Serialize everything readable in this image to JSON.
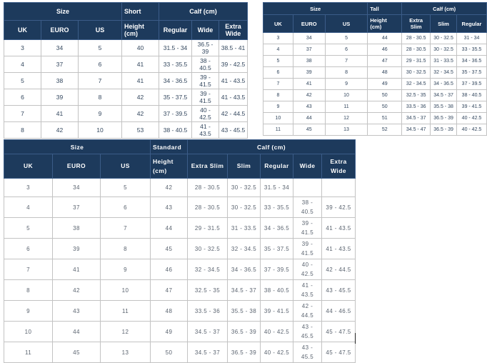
{
  "colors": {
    "header_background": "#1d3a5c",
    "header_divider": "#3b5c88",
    "header_text": "#ffffff",
    "body_border": "#c3c3c3",
    "body_text": "#33475e"
  },
  "tables": [
    {
      "id": "short",
      "size_label": "Size",
      "fit_label": "Short",
      "height_label": "Height (cm)",
      "calf_label": "Calf (cm)",
      "size_cols": [
        "UK",
        "EURO",
        "US"
      ],
      "calf_cols": [
        "Regular",
        "Wide",
        "Extra Wide"
      ],
      "rows": [
        [
          "3",
          "34",
          "5",
          "40",
          "31.5 - 34",
          "36.5 - 39",
          "38.5 - 41"
        ],
        [
          "4",
          "37",
          "6",
          "41",
          "33 - 35.5",
          "38 - 40.5",
          "39 - 42.5"
        ],
        [
          "5",
          "38",
          "7",
          "41",
          "34 - 36.5",
          "39 - 41.5",
          "41 - 43.5"
        ],
        [
          "6",
          "39",
          "8",
          "42",
          "35 - 37.5",
          "39 - 41.5",
          "41 - 43.5"
        ],
        [
          "7",
          "41",
          "9",
          "42",
          "37 - 39.5",
          "40 - 42.5",
          "42 - 44.5"
        ],
        [
          "8",
          "42",
          "10",
          "53",
          "38 - 40.5",
          "41 - 43.5",
          "43 - 45.5"
        ]
      ]
    },
    {
      "id": "tall",
      "size_label": "Size",
      "fit_label": "Tall",
      "height_label": "Height (cm)",
      "calf_label": "Calf (cm)",
      "size_cols": [
        "UK",
        "EURO",
        "US"
      ],
      "calf_cols": [
        "Extra Slim",
        "Slim",
        "Regular"
      ],
      "rows": [
        [
          "3",
          "34",
          "5",
          "44",
          "28 - 30.5",
          "30 - 32.5",
          "31 - 34"
        ],
        [
          "4",
          "37",
          "6",
          "46",
          "28 - 30.5",
          "30 - 32.5",
          "33 - 35.5"
        ],
        [
          "5",
          "38",
          "7",
          "47",
          "29 - 31.5",
          "31 - 33.5",
          "34 - 36.5"
        ],
        [
          "6",
          "39",
          "8",
          "48",
          "30 - 32.5",
          "32 - 34.5",
          "35 - 37.5"
        ],
        [
          "7",
          "41",
          "9",
          "49",
          "32 - 34.5",
          "34 - 36.5",
          "37 - 39.5"
        ],
        [
          "8",
          "42",
          "10",
          "50",
          "32.5 - 35",
          "34.5 - 37",
          "38 - 40.5"
        ],
        [
          "9",
          "43",
          "11",
          "50",
          "33.5 - 36",
          "35.5 - 38",
          "39 - 41.5"
        ],
        [
          "10",
          "44",
          "12",
          "51",
          "34.5 - 37",
          "36.5 - 39",
          "40 - 42.5"
        ],
        [
          "11",
          "45",
          "13",
          "52",
          "34.5 - 47",
          "36.5 - 39",
          "40 - 42.5"
        ]
      ]
    },
    {
      "id": "standard",
      "size_label": "Size",
      "fit_label": "Standard",
      "height_label": "Height (cm)",
      "calf_label": "Calf (cm)",
      "size_cols": [
        "UK",
        "EURO",
        "US"
      ],
      "calf_cols": [
        "Extra Slim",
        "Slim",
        "Regular",
        "Wide",
        "Extra Wide"
      ],
      "rows": [
        [
          "3",
          "34",
          "5",
          "42",
          "28 - 30.5",
          "30 - 32.5",
          "31.5 - 34",
          "",
          ""
        ],
        [
          "4",
          "37",
          "6",
          "43",
          "28 - 30.5",
          "30 - 32.5",
          "33 - 35.5",
          "38 - 40.5",
          "39 - 42.5"
        ],
        [
          "5",
          "38",
          "7",
          "44",
          "29 - 31.5",
          "31 - 33.5",
          "34 - 36.5",
          "39 - 41.5",
          "41 - 43.5"
        ],
        [
          "6",
          "39",
          "8",
          "45",
          "30 - 32.5",
          "32 - 34.5",
          "35 - 37.5",
          "39 - 41.5",
          "41 - 43.5"
        ],
        [
          "7",
          "41",
          "9",
          "46",
          "32 - 34.5",
          "34 - 36.5",
          "37 - 39.5",
          "40 - 42.5",
          "42 - 44.5"
        ],
        [
          "8",
          "42",
          "10",
          "47",
          "32.5 - 35",
          "34.5 - 37",
          "38 - 40.5",
          "41 - 43.5",
          "43 - 45.5"
        ],
        [
          "9",
          "43",
          "11",
          "48",
          "33.5 - 36",
          "35.5 - 38",
          "39 - 41.5",
          "42 - 44.5",
          "44 - 46.5"
        ],
        [
          "10",
          "44",
          "12",
          "49",
          "34.5 - 37",
          "36.5 - 39",
          "40 - 42.5",
          "43 - 45.5",
          "45 - 47.5"
        ],
        [
          "11",
          "45",
          "13",
          "50",
          "34.5 - 37",
          "36.5 - 39",
          "40 - 42.5",
          "43 - 45.5",
          "45 - 47.5"
        ]
      ]
    }
  ]
}
